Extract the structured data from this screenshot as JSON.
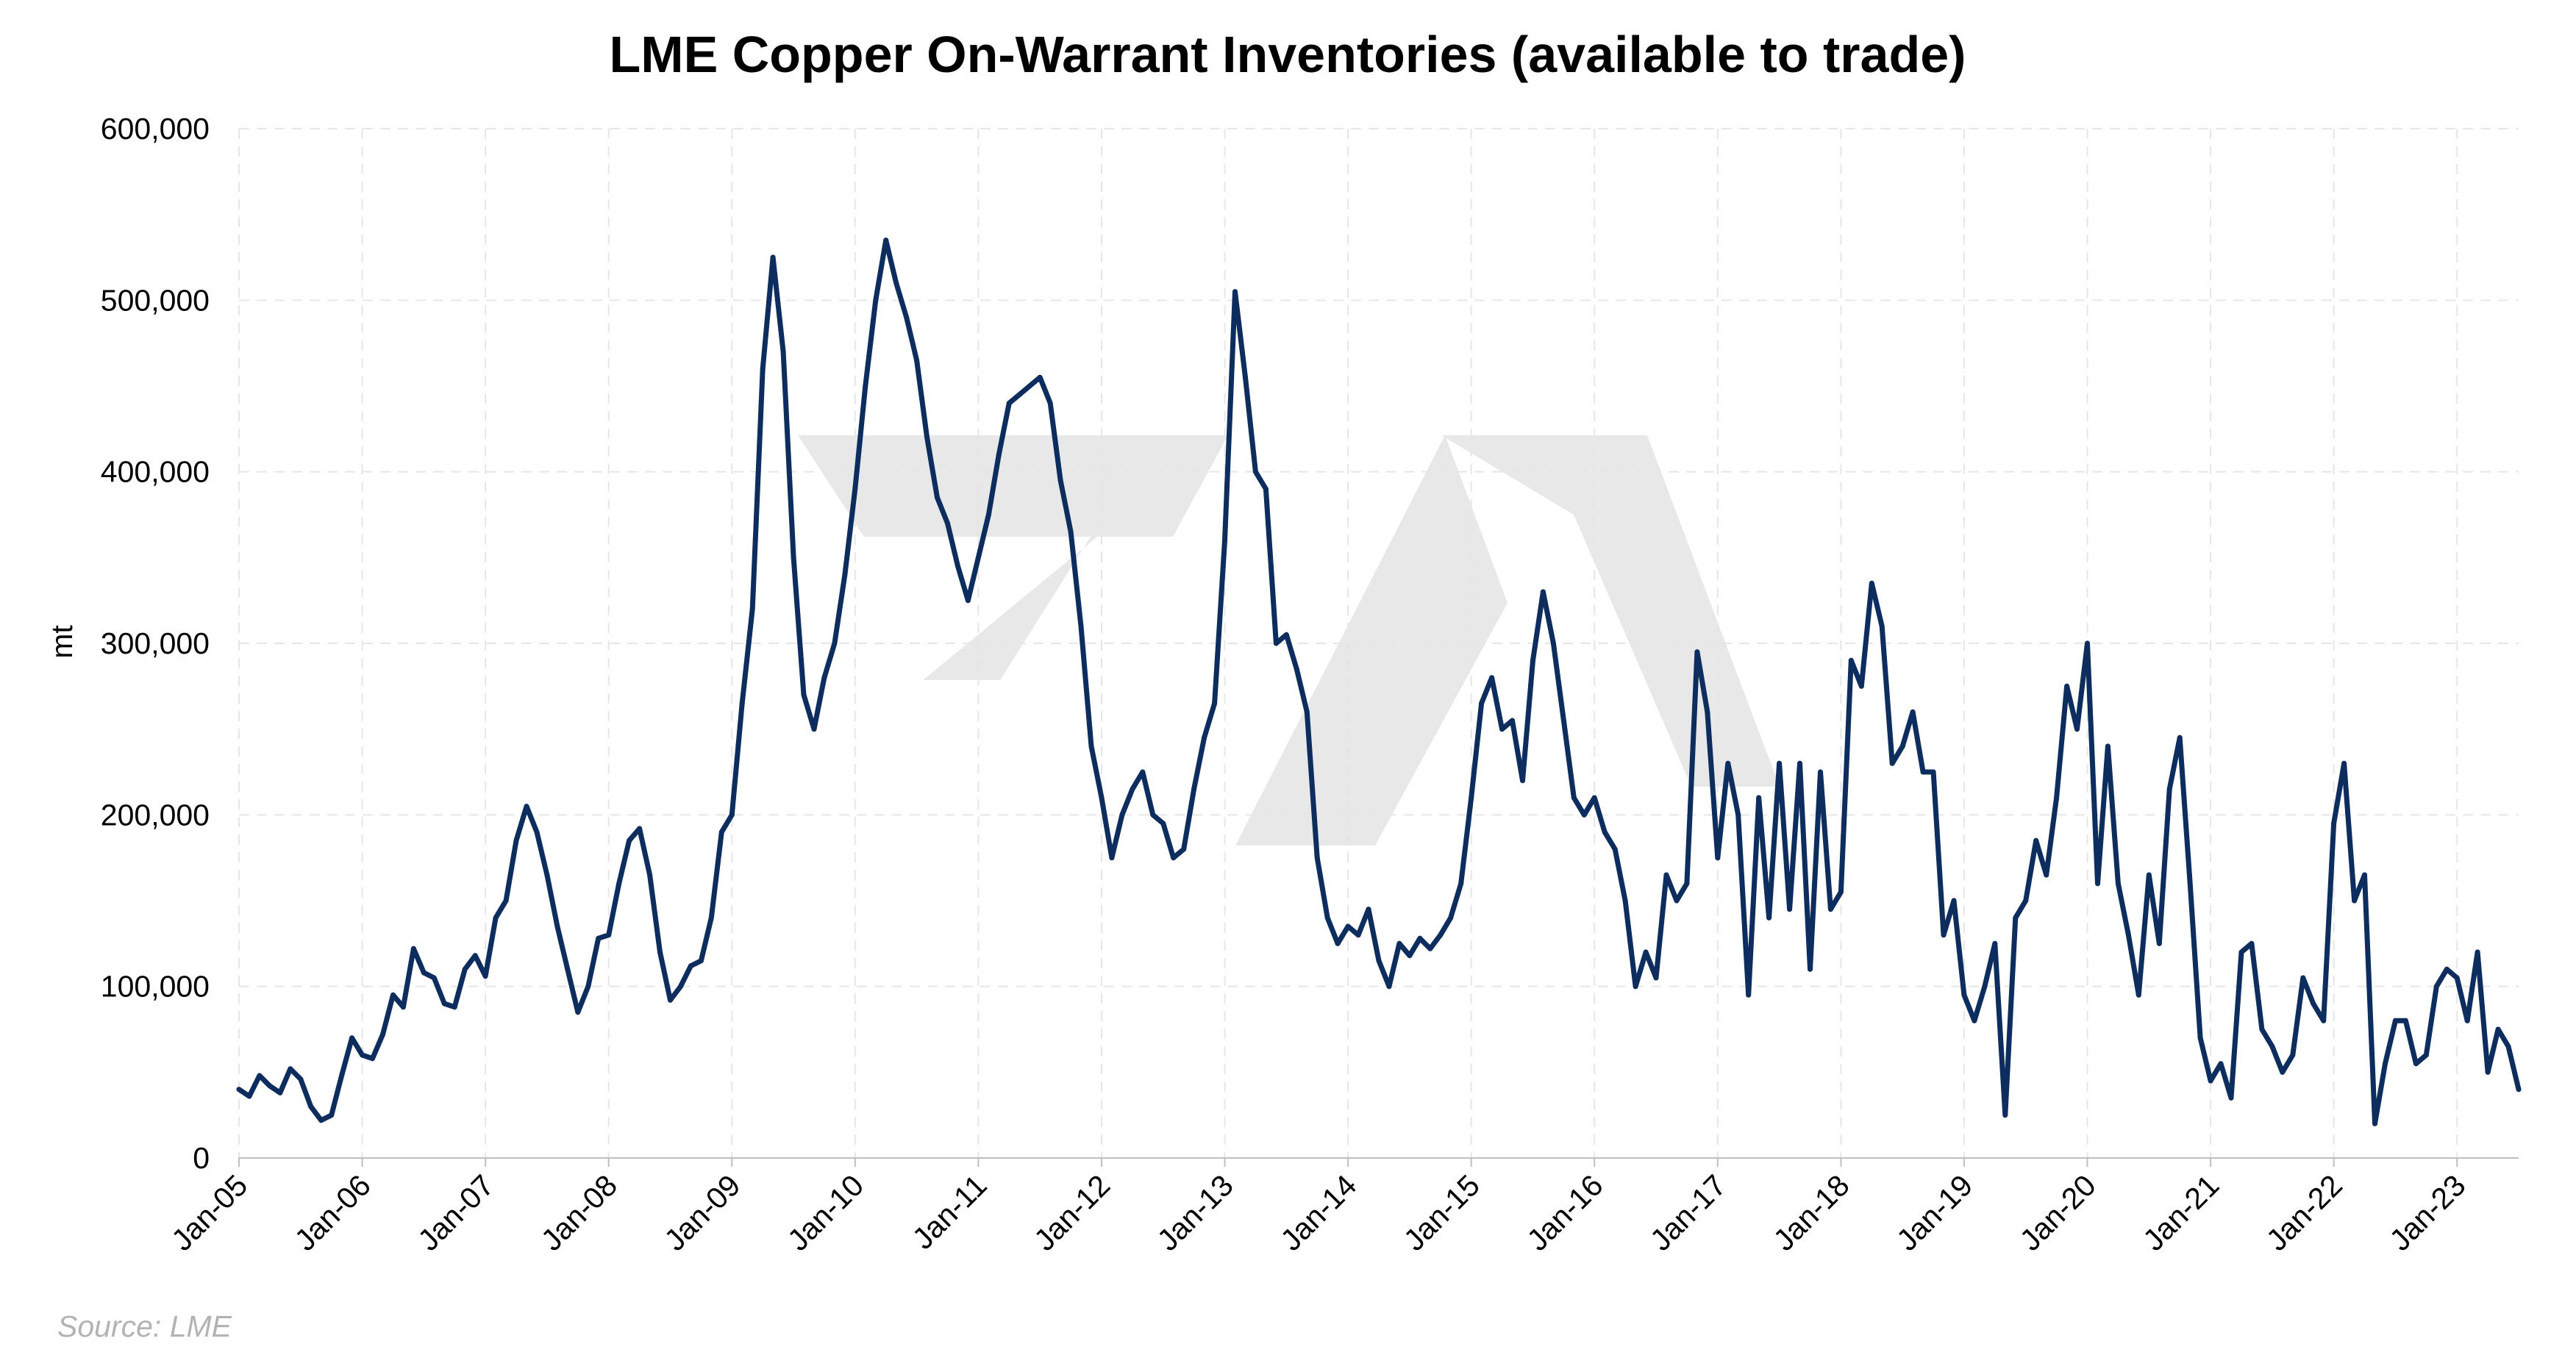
{
  "chart_data": {
    "type": "line",
    "title": "LME Copper On-Warrant Inventories (available to trade)",
    "xlabel": "",
    "ylabel": "mt",
    "source": "Source: LME",
    "ylim": [
      0,
      600000
    ],
    "yticks": [
      0,
      100000,
      200000,
      300000,
      400000,
      500000,
      600000
    ],
    "ytick_labels": [
      "0",
      "100,000",
      "200,000",
      "300,000",
      "400,000",
      "500,000",
      "600,000"
    ],
    "xticks": [
      "Jan-05",
      "Jan-06",
      "Jan-07",
      "Jan-08",
      "Jan-09",
      "Jan-10",
      "Jan-11",
      "Jan-12",
      "Jan-13",
      "Jan-14",
      "Jan-15",
      "Jan-16",
      "Jan-17",
      "Jan-18",
      "Jan-19",
      "Jan-20",
      "Jan-21",
      "Jan-22",
      "Jan-23"
    ],
    "xlim": [
      "2005-01",
      "2023-07"
    ],
    "grid": true,
    "line_color": "#0d2d5e",
    "series": [
      {
        "points": [
          [
            "2005-01",
            40000
          ],
          [
            "2005-02",
            36000
          ],
          [
            "2005-03",
            48000
          ],
          [
            "2005-04",
            42000
          ],
          [
            "2005-05",
            38000
          ],
          [
            "2005-06",
            52000
          ],
          [
            "2005-07",
            46000
          ],
          [
            "2005-08",
            30000
          ],
          [
            "2005-09",
            22000
          ],
          [
            "2005-10",
            25000
          ],
          [
            "2005-11",
            48000
          ],
          [
            "2005-12",
            70000
          ],
          [
            "2006-01",
            60000
          ],
          [
            "2006-02",
            58000
          ],
          [
            "2006-03",
            72000
          ],
          [
            "2006-04",
            95000
          ],
          [
            "2006-05",
            88000
          ],
          [
            "2006-06",
            122000
          ],
          [
            "2006-07",
            108000
          ],
          [
            "2006-08",
            105000
          ],
          [
            "2006-09",
            90000
          ],
          [
            "2006-10",
            88000
          ],
          [
            "2006-11",
            110000
          ],
          [
            "2006-12",
            118000
          ],
          [
            "2007-01",
            106000
          ],
          [
            "2007-02",
            140000
          ],
          [
            "2007-03",
            150000
          ],
          [
            "2007-04",
            185000
          ],
          [
            "2007-05",
            205000
          ],
          [
            "2007-06",
            190000
          ],
          [
            "2007-07",
            165000
          ],
          [
            "2007-08",
            135000
          ],
          [
            "2007-09",
            110000
          ],
          [
            "2007-10",
            85000
          ],
          [
            "2007-11",
            100000
          ],
          [
            "2007-12",
            128000
          ],
          [
            "2008-01",
            130000
          ],
          [
            "2008-02",
            160000
          ],
          [
            "2008-03",
            185000
          ],
          [
            "2008-04",
            192000
          ],
          [
            "2008-05",
            165000
          ],
          [
            "2008-06",
            120000
          ],
          [
            "2008-07",
            92000
          ],
          [
            "2008-08",
            100000
          ],
          [
            "2008-09",
            112000
          ],
          [
            "2008-10",
            115000
          ],
          [
            "2008-11",
            140000
          ],
          [
            "2008-12",
            190000
          ],
          [
            "2009-01",
            200000
          ],
          [
            "2009-02",
            265000
          ],
          [
            "2009-03",
            320000
          ],
          [
            "2009-04",
            460000
          ],
          [
            "2009-05",
            525000
          ],
          [
            "2009-06",
            470000
          ],
          [
            "2009-07",
            350000
          ],
          [
            "2009-08",
            270000
          ],
          [
            "2009-09",
            250000
          ],
          [
            "2009-10",
            280000
          ],
          [
            "2009-11",
            300000
          ],
          [
            "2009-12",
            340000
          ],
          [
            "2010-01",
            390000
          ],
          [
            "2010-02",
            450000
          ],
          [
            "2010-03",
            500000
          ],
          [
            "2010-04",
            535000
          ],
          [
            "2010-05",
            510000
          ],
          [
            "2010-06",
            490000
          ],
          [
            "2010-07",
            465000
          ],
          [
            "2010-08",
            420000
          ],
          [
            "2010-09",
            385000
          ],
          [
            "2010-10",
            370000
          ],
          [
            "2010-11",
            345000
          ],
          [
            "2010-12",
            325000
          ],
          [
            "2011-01",
            350000
          ],
          [
            "2011-02",
            375000
          ],
          [
            "2011-03",
            410000
          ],
          [
            "2011-04",
            440000
          ],
          [
            "2011-05",
            445000
          ],
          [
            "2011-06",
            450000
          ],
          [
            "2011-07",
            455000
          ],
          [
            "2011-08",
            440000
          ],
          [
            "2011-09",
            395000
          ],
          [
            "2011-10",
            365000
          ],
          [
            "2011-11",
            310000
          ],
          [
            "2011-12",
            240000
          ],
          [
            "2012-01",
            210000
          ],
          [
            "2012-02",
            175000
          ],
          [
            "2012-03",
            200000
          ],
          [
            "2012-04",
            215000
          ],
          [
            "2012-05",
            225000
          ],
          [
            "2012-06",
            200000
          ],
          [
            "2012-07",
            195000
          ],
          [
            "2012-08",
            175000
          ],
          [
            "2012-09",
            180000
          ],
          [
            "2012-10",
            215000
          ],
          [
            "2012-11",
            245000
          ],
          [
            "2012-12",
            265000
          ],
          [
            "2013-01",
            360000
          ],
          [
            "2013-02",
            505000
          ],
          [
            "2013-03",
            455000
          ],
          [
            "2013-04",
            400000
          ],
          [
            "2013-05",
            390000
          ],
          [
            "2013-06",
            300000
          ],
          [
            "2013-07",
            305000
          ],
          [
            "2013-08",
            285000
          ],
          [
            "2013-09",
            260000
          ],
          [
            "2013-10",
            175000
          ],
          [
            "2013-11",
            140000
          ],
          [
            "2013-12",
            125000
          ],
          [
            "2014-01",
            135000
          ],
          [
            "2014-02",
            130000
          ],
          [
            "2014-03",
            145000
          ],
          [
            "2014-04",
            115000
          ],
          [
            "2014-05",
            100000
          ],
          [
            "2014-06",
            125000
          ],
          [
            "2014-07",
            118000
          ],
          [
            "2014-08",
            128000
          ],
          [
            "2014-09",
            122000
          ],
          [
            "2014-10",
            130000
          ],
          [
            "2014-11",
            140000
          ],
          [
            "2014-12",
            160000
          ],
          [
            "2015-01",
            210000
          ],
          [
            "2015-02",
            265000
          ],
          [
            "2015-03",
            280000
          ],
          [
            "2015-04",
            250000
          ],
          [
            "2015-05",
            255000
          ],
          [
            "2015-06",
            220000
          ],
          [
            "2015-07",
            290000
          ],
          [
            "2015-08",
            330000
          ],
          [
            "2015-09",
            300000
          ],
          [
            "2015-10",
            255000
          ],
          [
            "2015-11",
            210000
          ],
          [
            "2015-12",
            200000
          ],
          [
            "2016-01",
            210000
          ],
          [
            "2016-02",
            190000
          ],
          [
            "2016-03",
            180000
          ],
          [
            "2016-04",
            150000
          ],
          [
            "2016-05",
            100000
          ],
          [
            "2016-06",
            120000
          ],
          [
            "2016-07",
            105000
          ],
          [
            "2016-08",
            165000
          ],
          [
            "2016-09",
            150000
          ],
          [
            "2016-10",
            160000
          ],
          [
            "2016-11",
            295000
          ],
          [
            "2016-12",
            260000
          ],
          [
            "2017-01",
            175000
          ],
          [
            "2017-02",
            230000
          ],
          [
            "2017-03",
            200000
          ],
          [
            "2017-04",
            95000
          ],
          [
            "2017-05",
            210000
          ],
          [
            "2017-06",
            140000
          ],
          [
            "2017-07",
            230000
          ],
          [
            "2017-08",
            145000
          ],
          [
            "2017-09",
            230000
          ],
          [
            "2017-10",
            110000
          ],
          [
            "2017-11",
            225000
          ],
          [
            "2017-12",
            145000
          ],
          [
            "2018-01",
            155000
          ],
          [
            "2018-02",
            290000
          ],
          [
            "2018-03",
            275000
          ],
          [
            "2018-04",
            335000
          ],
          [
            "2018-05",
            310000
          ],
          [
            "2018-06",
            230000
          ],
          [
            "2018-07",
            240000
          ],
          [
            "2018-08",
            260000
          ],
          [
            "2018-09",
            225000
          ],
          [
            "2018-10",
            225000
          ],
          [
            "2018-11",
            130000
          ],
          [
            "2018-12",
            150000
          ],
          [
            "2019-01",
            95000
          ],
          [
            "2019-02",
            80000
          ],
          [
            "2019-03",
            100000
          ],
          [
            "2019-04",
            125000
          ],
          [
            "2019-05",
            25000
          ],
          [
            "2019-06",
            140000
          ],
          [
            "2019-07",
            150000
          ],
          [
            "2019-08",
            185000
          ],
          [
            "2019-09",
            165000
          ],
          [
            "2019-10",
            210000
          ],
          [
            "2019-11",
            275000
          ],
          [
            "2019-12",
            250000
          ],
          [
            "2020-01",
            300000
          ],
          [
            "2020-02",
            160000
          ],
          [
            "2020-03",
            240000
          ],
          [
            "2020-04",
            160000
          ],
          [
            "2020-05",
            130000
          ],
          [
            "2020-06",
            95000
          ],
          [
            "2020-07",
            165000
          ],
          [
            "2020-08",
            125000
          ],
          [
            "2020-09",
            215000
          ],
          [
            "2020-10",
            245000
          ],
          [
            "2020-11",
            160000
          ],
          [
            "2020-12",
            70000
          ],
          [
            "2021-01",
            45000
          ],
          [
            "2021-02",
            55000
          ],
          [
            "2021-03",
            35000
          ],
          [
            "2021-04",
            120000
          ],
          [
            "2021-05",
            125000
          ],
          [
            "2021-06",
            75000
          ],
          [
            "2021-07",
            65000
          ],
          [
            "2021-08",
            50000
          ],
          [
            "2021-09",
            60000
          ],
          [
            "2021-10",
            105000
          ],
          [
            "2021-11",
            90000
          ],
          [
            "2021-12",
            80000
          ],
          [
            "2022-01",
            195000
          ],
          [
            "2022-02",
            230000
          ],
          [
            "2022-03",
            150000
          ],
          [
            "2022-04",
            165000
          ],
          [
            "2022-05",
            20000
          ],
          [
            "2022-06",
            55000
          ],
          [
            "2022-07",
            80000
          ],
          [
            "2022-08",
            80000
          ],
          [
            "2022-09",
            55000
          ],
          [
            "2022-10",
            60000
          ],
          [
            "2022-11",
            100000
          ],
          [
            "2022-12",
            110000
          ],
          [
            "2023-01",
            105000
          ],
          [
            "2023-02",
            80000
          ],
          [
            "2023-03",
            120000
          ],
          [
            "2023-04",
            50000
          ],
          [
            "2023-05",
            75000
          ],
          [
            "2023-06",
            65000
          ],
          [
            "2023-07",
            40000
          ]
        ]
      }
    ]
  }
}
